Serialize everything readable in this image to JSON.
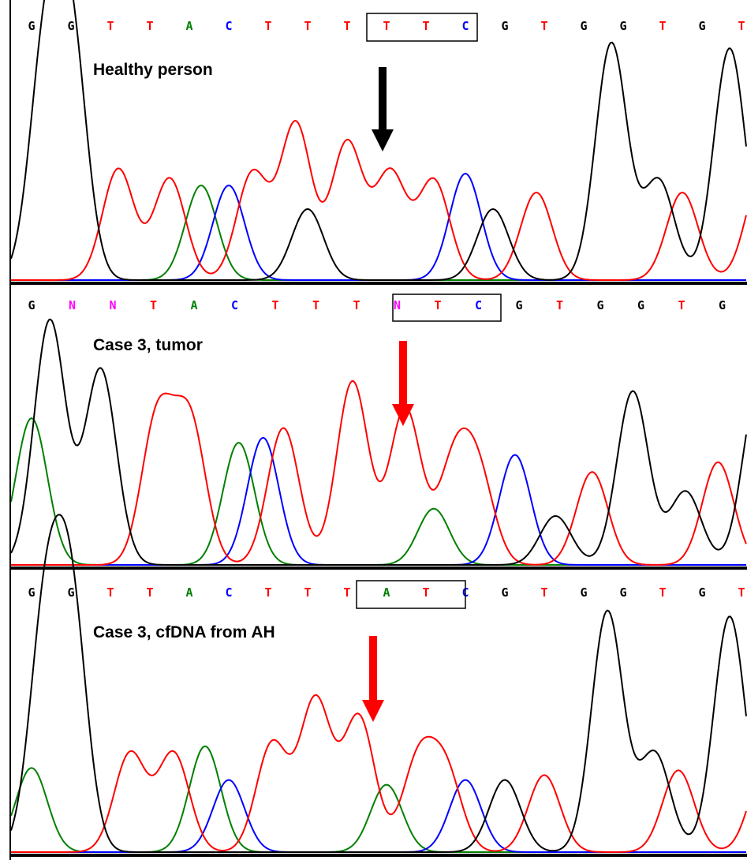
{
  "colors": {
    "G": "#000000",
    "T": "#ff0000",
    "A": "#008000",
    "C": "#0000ff",
    "N": "#ff00ff"
  },
  "panels": [
    {
      "id": "healthy",
      "label": "Healthy person",
      "arrow_color": "#000000",
      "bases": [
        "G",
        "G",
        "T",
        "T",
        "A",
        "C",
        "T",
        "T",
        "T",
        "T",
        "T",
        "C",
        "G",
        "T",
        "G",
        "G",
        "T",
        "G",
        "T"
      ],
      "box_range": [
        9,
        11
      ],
      "peaks": {
        "G": [
          [
            0.35,
            0.95
          ],
          [
            1.0,
            1.0
          ],
          [
            7.0,
            0.3
          ],
          [
            11.7,
            0.3
          ],
          [
            14.7,
            1.0
          ],
          [
            15.9,
            0.42
          ],
          [
            17.7,
            0.98
          ]
        ],
        "T": [
          [
            2.2,
            0.47
          ],
          [
            3.5,
            0.43
          ],
          [
            5.6,
            0.45
          ],
          [
            6.7,
            0.66
          ],
          [
            8.0,
            0.58
          ],
          [
            9.1,
            0.45
          ],
          [
            10.2,
            0.42
          ],
          [
            12.8,
            0.37
          ],
          [
            16.5,
            0.37
          ],
          [
            18.5,
            0.43
          ]
        ],
        "A": [
          [
            4.3,
            0.4
          ]
        ],
        "C": [
          [
            5.0,
            0.4
          ],
          [
            11.0,
            0.45
          ]
        ]
      }
    },
    {
      "id": "tumor",
      "label": "Case 3, tumor",
      "arrow_color": "#ff0000",
      "bases": [
        "G",
        "N",
        "N",
        "T",
        "A",
        "C",
        "T",
        "T",
        "T",
        "N",
        "T",
        "C",
        "G",
        "T",
        "G",
        "G",
        "T",
        "G"
      ],
      "box_range": [
        9,
        11
      ],
      "peaks": {
        "G": [
          [
            0.45,
            1.0
          ],
          [
            1.7,
            0.8
          ],
          [
            12.9,
            0.2
          ],
          [
            14.8,
            0.71
          ],
          [
            16.1,
            0.3
          ],
          [
            17.9,
            0.73
          ]
        ],
        "T": [
          [
            3.1,
            0.6
          ],
          [
            3.9,
            0.58
          ],
          [
            6.2,
            0.56
          ],
          [
            7.9,
            0.75
          ],
          [
            9.2,
            0.64
          ],
          [
            10.4,
            0.4
          ],
          [
            11.0,
            0.35
          ],
          [
            13.8,
            0.38
          ],
          [
            16.9,
            0.42
          ]
        ],
        "A": [
          [
            0.0,
            0.6
          ],
          [
            5.1,
            0.5
          ],
          [
            9.9,
            0.23
          ]
        ],
        "C": [
          [
            5.7,
            0.52
          ],
          [
            11.9,
            0.45
          ]
        ]
      }
    },
    {
      "id": "cfdna",
      "label": "Case 3, cfDNA from AH",
      "arrow_color": "#ff0000",
      "bases": [
        "G",
        "G",
        "T",
        "T",
        "A",
        "C",
        "T",
        "T",
        "T",
        "A",
        "T",
        "C",
        "G",
        "T",
        "G",
        "G",
        "T",
        "G",
        "T"
      ],
      "box_range": [
        9,
        11
      ],
      "peaks": {
        "G": [
          [
            0.35,
            0.95
          ],
          [
            1.0,
            1.0
          ],
          [
            12.0,
            0.3
          ],
          [
            14.6,
            1.0
          ],
          [
            15.8,
            0.41
          ],
          [
            17.7,
            0.98
          ]
        ],
        "T": [
          [
            2.5,
            0.41
          ],
          [
            3.6,
            0.41
          ],
          [
            6.1,
            0.45
          ],
          [
            7.2,
            0.63
          ],
          [
            8.3,
            0.56
          ],
          [
            9.8,
            0.37
          ],
          [
            10.5,
            0.33
          ],
          [
            13.0,
            0.32
          ],
          [
            16.4,
            0.34
          ],
          [
            18.6,
            0.35
          ]
        ],
        "A": [
          [
            0.0,
            0.35
          ],
          [
            4.4,
            0.44
          ],
          [
            9.0,
            0.28
          ]
        ],
        "C": [
          [
            5.0,
            0.3
          ],
          [
            11.0,
            0.3
          ]
        ]
      }
    }
  ]
}
